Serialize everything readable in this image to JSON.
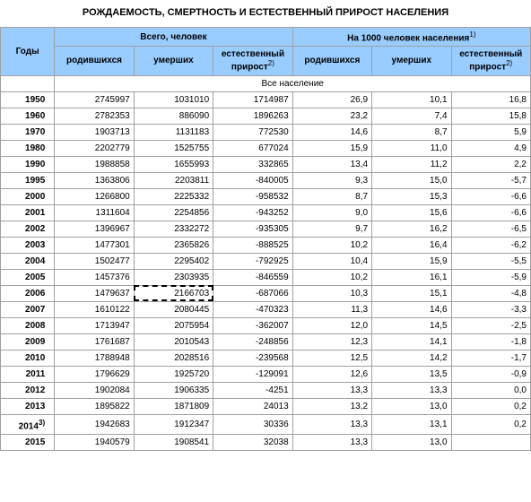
{
  "title": "РОЖДАЕМОСТЬ, СМЕРТНОСТЬ И ЕСТЕСТВЕННЫЙ ПРИРОСТ НАСЕЛЕНИЯ",
  "headers": {
    "years": "Годы",
    "total_group": "Всего, человек",
    "per1000_group": "На 1000 человек населения",
    "born": "родившихся",
    "died": "умерших",
    "natural_increase": "естественный прирост",
    "sup1": "1)",
    "sup2": "2)",
    "sup3": "3)"
  },
  "section_label": "Все население",
  "rows": [
    {
      "year": "1950",
      "born": "2745997",
      "died": "1031010",
      "inc": "1714987",
      "born_r": "26,9",
      "died_r": "10,1",
      "inc_r": "16,8"
    },
    {
      "year": "1960",
      "born": "2782353",
      "died": "886090",
      "inc": "1896263",
      "born_r": "23,2",
      "died_r": "7,4",
      "inc_r": "15,8"
    },
    {
      "year": "1970",
      "born": "1903713",
      "died": "1131183",
      "inc": "772530",
      "born_r": "14,6",
      "died_r": "8,7",
      "inc_r": "5,9"
    },
    {
      "year": "1980",
      "born": "2202779",
      "died": "1525755",
      "inc": "677024",
      "born_r": "15,9",
      "died_r": "11,0",
      "inc_r": "4,9"
    },
    {
      "year": "1990",
      "born": "1988858",
      "died": "1655993",
      "inc": "332865",
      "born_r": "13,4",
      "died_r": "11,2",
      "inc_r": "2,2"
    },
    {
      "year": "1995",
      "born": "1363806",
      "died": "2203811",
      "inc": "-840005",
      "born_r": "9,3",
      "died_r": "15,0",
      "inc_r": "-5,7"
    },
    {
      "year": "2000",
      "born": "1266800",
      "died": "2225332",
      "inc": "-958532",
      "born_r": "8,7",
      "died_r": "15,3",
      "inc_r": "-6,6"
    },
    {
      "year": "2001",
      "born": "1311604",
      "died": "2254856",
      "inc": "-943252",
      "born_r": "9,0",
      "died_r": "15,6",
      "inc_r": "-6,6"
    },
    {
      "year": "2002",
      "born": "1396967",
      "died": "2332272",
      "inc": "-935305",
      "born_r": "9,7",
      "died_r": "16,2",
      "inc_r": "-6,5"
    },
    {
      "year": "2003",
      "born": "1477301",
      "died": "2365826",
      "inc": "-888525",
      "born_r": "10,2",
      "died_r": "16,4",
      "inc_r": "-6,2"
    },
    {
      "year": "2004",
      "born": "1502477",
      "died": "2295402",
      "inc": "-792925",
      "born_r": "10,4",
      "died_r": "15,9",
      "inc_r": "-5,5"
    },
    {
      "year": "2005",
      "born": "1457376",
      "died": "2303935",
      "inc": "-846559",
      "born_r": "10,2",
      "died_r": "16,1",
      "inc_r": "-5,9"
    },
    {
      "year": "2006",
      "born": "1479637",
      "died": "2166703",
      "inc": "-687066",
      "born_r": "10,3",
      "died_r": "15,1",
      "inc_r": "-4,8",
      "hl": "died"
    },
    {
      "year": "2007",
      "born": "1610122",
      "died": "2080445",
      "inc": "-470323",
      "born_r": "11,3",
      "died_r": "14,6",
      "inc_r": "-3,3"
    },
    {
      "year": "2008",
      "born": "1713947",
      "died": "2075954",
      "inc": "-362007",
      "born_r": "12,0",
      "died_r": "14,5",
      "inc_r": "-2,5"
    },
    {
      "year": "2009",
      "born": "1761687",
      "died": "2010543",
      "inc": "-248856",
      "born_r": "12,3",
      "died_r": "14,1",
      "inc_r": "-1,8"
    },
    {
      "year": "2010",
      "born": "1788948",
      "died": "2028516",
      "inc": "-239568",
      "born_r": "12,5",
      "died_r": "14,2",
      "inc_r": "-1,7"
    },
    {
      "year": "2011",
      "born": "1796629",
      "died": "1925720",
      "inc": "-129091",
      "born_r": "12,6",
      "died_r": "13,5",
      "inc_r": "-0,9"
    },
    {
      "year": "2012",
      "born": "1902084",
      "died": "1906335",
      "inc": "-4251",
      "born_r": "13,3",
      "died_r": "13,3",
      "inc_r": "0,0"
    },
    {
      "year": "2013",
      "born": "1895822",
      "died": "1871809",
      "inc": "24013",
      "born_r": "13,2",
      "died_r": "13,0",
      "inc_r": "0,2"
    },
    {
      "year": "2014",
      "year_sup": "3)",
      "born": "1942683",
      "died": "1912347",
      "inc": "30336",
      "born_r": "13,3",
      "died_r": "13,1",
      "inc_r": "0,2"
    },
    {
      "year": "2015",
      "born": "1940579",
      "died": "1908541",
      "inc": "32038",
      "born_r": "13,3",
      "died_r": "13,0",
      "inc_r": ""
    }
  ]
}
